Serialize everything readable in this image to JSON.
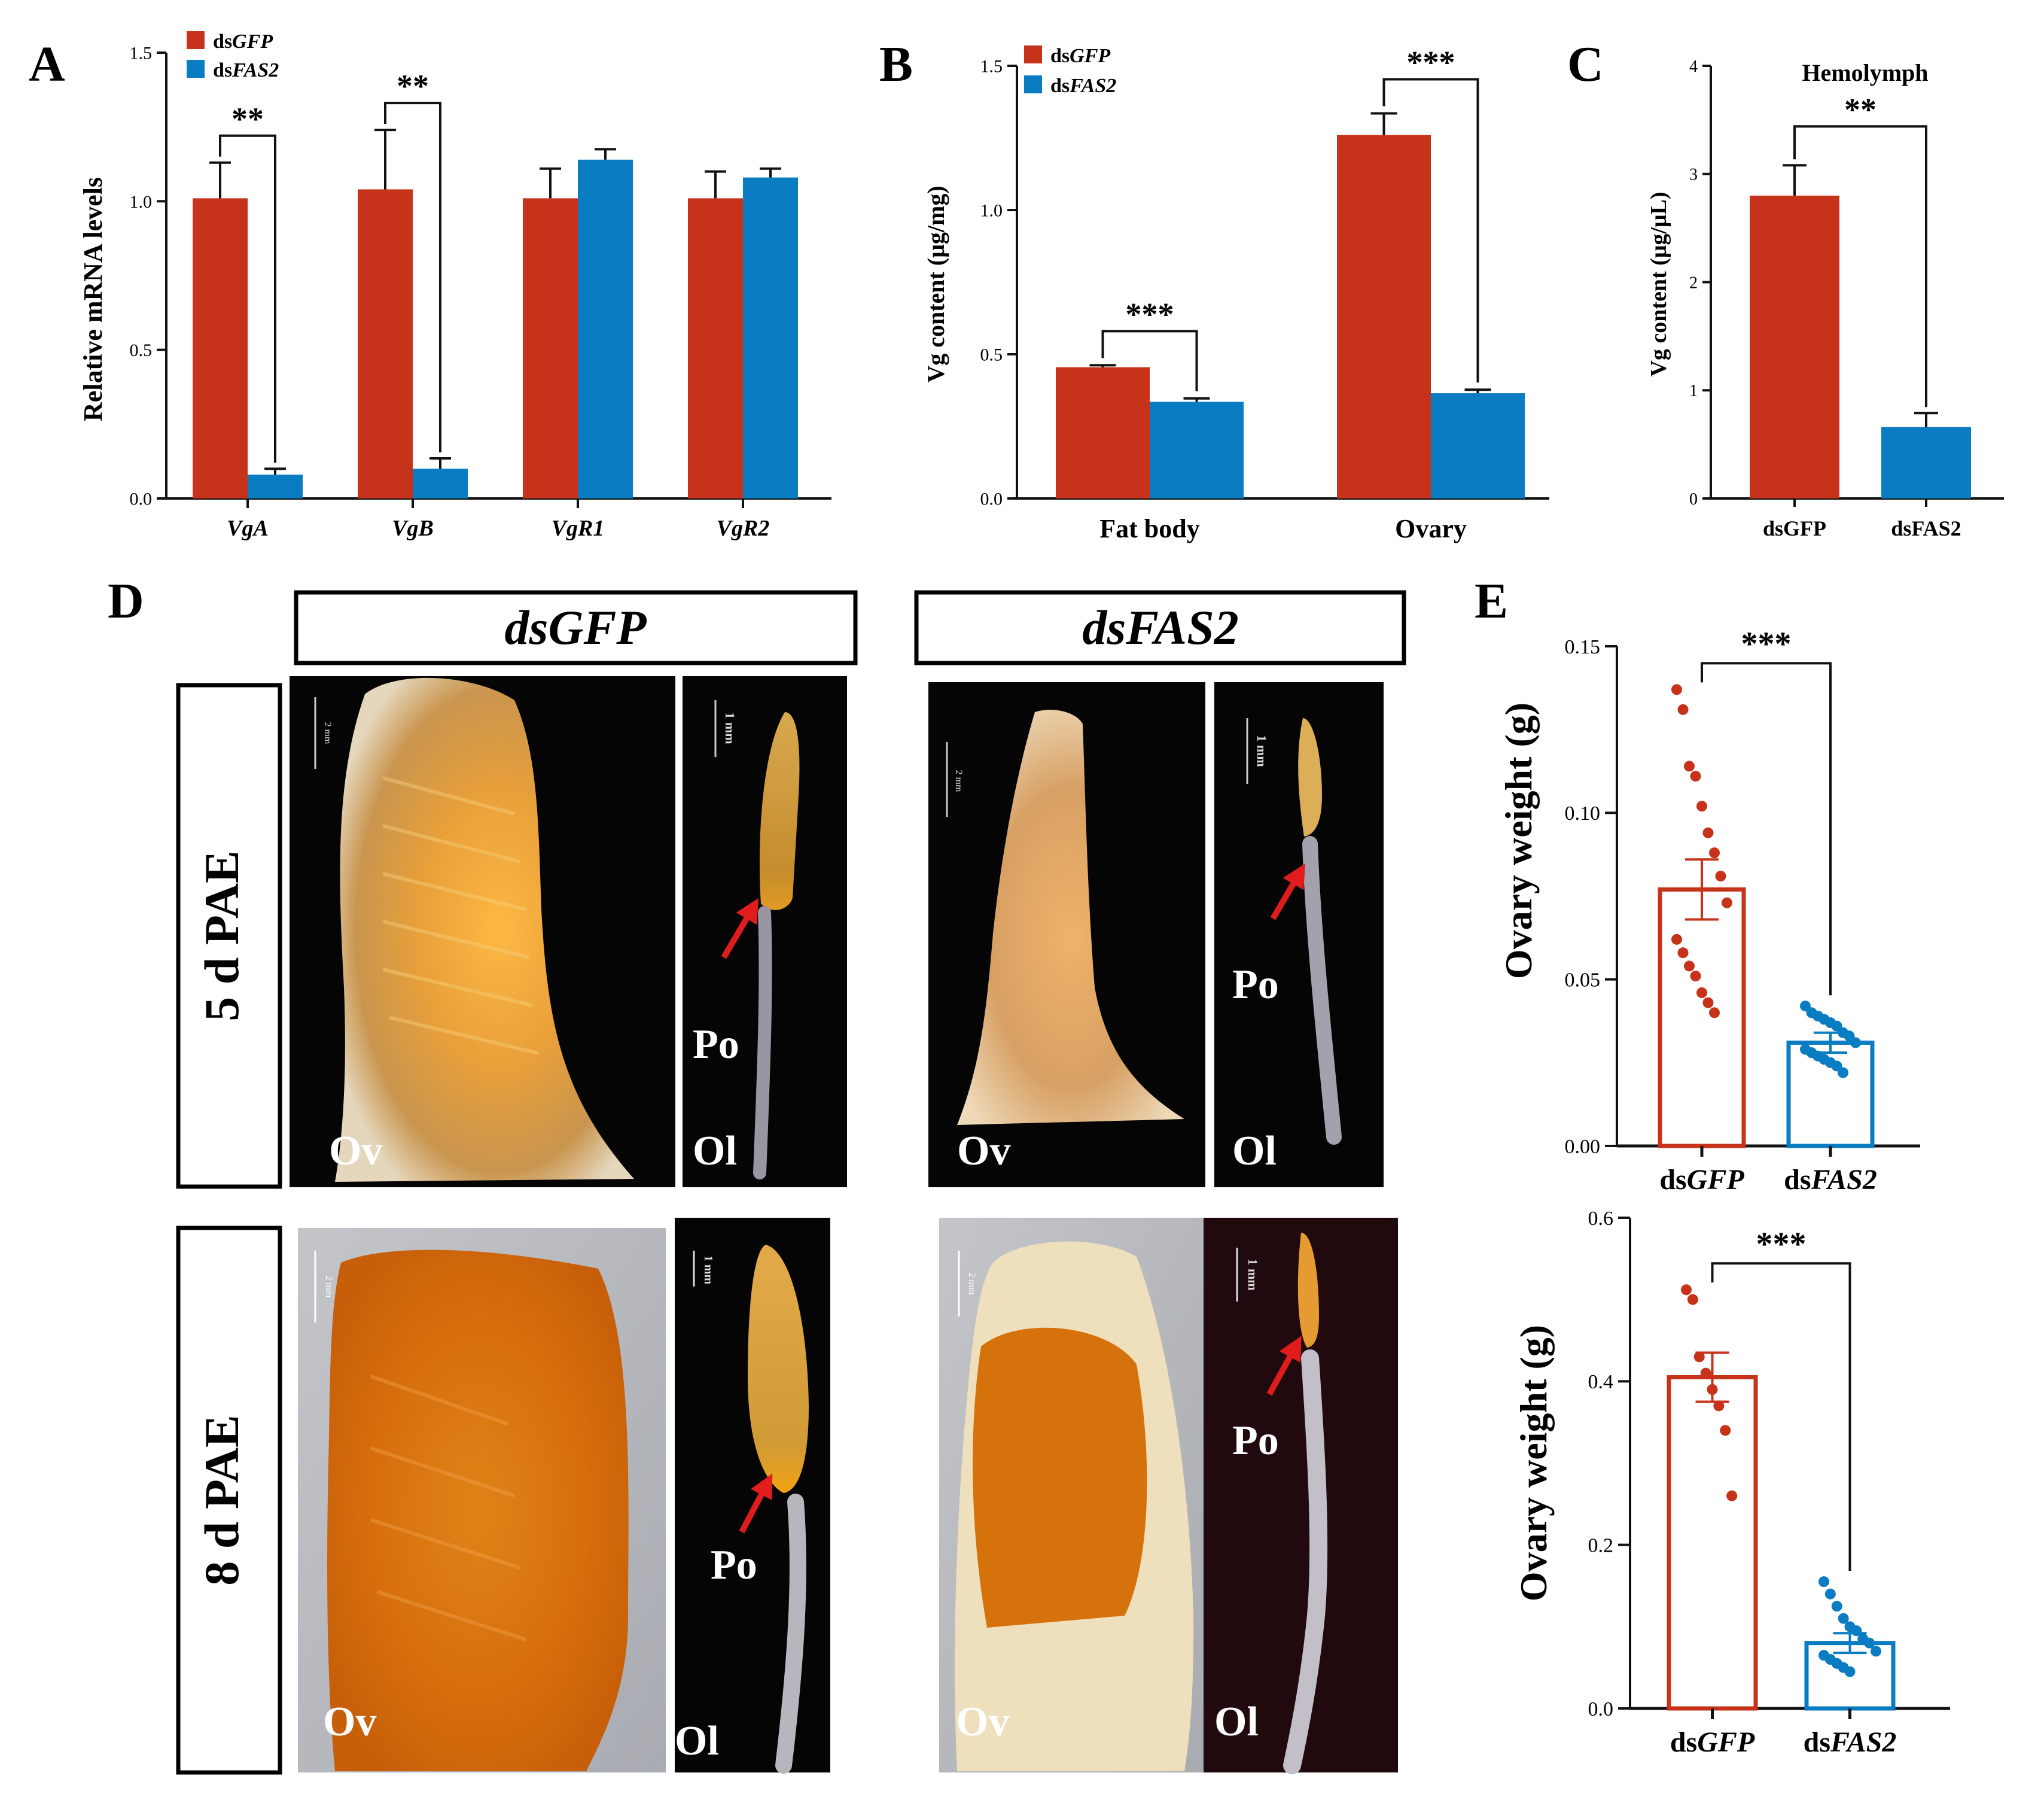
{
  "colors": {
    "gfp": "#c7321a",
    "fas2": "#0a7cc1",
    "axis": "#111111",
    "arrow": "#e11c1c"
  },
  "chart_data": [
    {
      "id": "A",
      "panel_label": "A",
      "type": "bar",
      "ylabel": "Relative mRNA levels",
      "ylim": [
        0,
        1.5
      ],
      "yticks": [
        "0.0",
        "0.5",
        "1.0",
        "1.5"
      ],
      "categories": [
        "VgA",
        "VgB",
        "VgR1",
        "VgR2"
      ],
      "series": [
        {
          "name": "dsGFP",
          "prefix": "ds",
          "italic": "GFP",
          "values": [
            1.01,
            1.04,
            1.01,
            1.01
          ],
          "errors": [
            0.12,
            0.2,
            0.1,
            0.09
          ]
        },
        {
          "name": "dsFAS2",
          "prefix": "ds",
          "italic": "FAS2",
          "values": [
            0.08,
            0.1,
            1.14,
            1.08
          ],
          "errors": [
            0.02,
            0.035,
            0.035,
            0.03
          ]
        }
      ],
      "significance": [
        {
          "category": 0,
          "label": "**"
        },
        {
          "category": 1,
          "label": "**"
        }
      ]
    },
    {
      "id": "B",
      "panel_label": "B",
      "type": "bar",
      "ylabel": "Vg content (μg/mg)",
      "ylim": [
        0,
        1.5
      ],
      "yticks": [
        "0.0",
        "0.5",
        "1.0",
        "1.5"
      ],
      "categories": [
        "Fat body",
        "Ovary"
      ],
      "series": [
        {
          "name": "dsGFP",
          "prefix": "ds",
          "italic": "GFP",
          "values": [
            0.455,
            1.26
          ],
          "errors": [
            0.007,
            0.075
          ]
        },
        {
          "name": "dsFAS2",
          "prefix": "ds",
          "italic": "FAS2",
          "values": [
            0.335,
            0.365
          ],
          "errors": [
            0.012,
            0.012
          ]
        }
      ],
      "significance": [
        {
          "category": 0,
          "label": "***"
        },
        {
          "category": 1,
          "label": "***"
        }
      ]
    },
    {
      "id": "C",
      "panel_label": "C",
      "type": "bar",
      "title": "Hemolymph",
      "ylabel": "Vg content (μg/μL)",
      "ylim": [
        0,
        4
      ],
      "yticks": [
        "0",
        "1",
        "2",
        "3",
        "4"
      ],
      "categories": [
        "dsGFP",
        "dsFAS2"
      ],
      "values": [
        2.8,
        0.66
      ],
      "errors": [
        0.28,
        0.13
      ],
      "significance": [
        {
          "label": "**"
        }
      ]
    },
    {
      "id": "E1",
      "panel_label": "E",
      "type": "bar",
      "ylabel": "Ovary weight (g)",
      "ylim": [
        0,
        0.15
      ],
      "yticks": [
        "0.00",
        "0.05",
        "0.10",
        "0.15"
      ],
      "categories": [
        "dsGFP",
        "dsFAS2"
      ],
      "values": [
        0.077,
        0.031
      ],
      "errors": [
        0.009,
        0.003
      ],
      "points": [
        [
          0.137,
          0.131,
          0.114,
          0.111,
          0.102,
          0.094,
          0.088,
          0.081,
          0.073,
          0.062,
          0.058,
          0.054,
          0.051,
          0.046,
          0.043,
          0.04
        ],
        [
          0.042,
          0.04,
          0.039,
          0.038,
          0.037,
          0.036,
          0.034,
          0.033,
          0.031,
          0.029,
          0.028,
          0.027,
          0.026,
          0.025,
          0.024,
          0.022
        ]
      ],
      "significance": [
        {
          "label": "***"
        }
      ]
    },
    {
      "id": "E2",
      "type": "bar",
      "ylabel": "Ovary weight (g)",
      "ylim": [
        0,
        0.6
      ],
      "yticks": [
        "0.0",
        "0.2",
        "0.4",
        "0.6"
      ],
      "categories": [
        "dsGFP",
        "dsFAS2"
      ],
      "values": [
        0.405,
        0.08
      ],
      "errors": [
        0.03,
        0.012
      ],
      "points": [
        [
          0.512,
          0.5,
          0.43,
          0.41,
          0.39,
          0.37,
          0.34,
          0.26
        ],
        [
          0.155,
          0.14,
          0.125,
          0.11,
          0.1,
          0.095,
          0.085,
          0.08,
          0.07,
          0.065,
          0.06,
          0.055,
          0.05,
          0.045
        ]
      ],
      "significance": [
        {
          "label": "***"
        }
      ]
    }
  ],
  "panel_d": {
    "label": "D",
    "col_headers": [
      "dsGFP",
      "dsFAS2"
    ],
    "row_headers": [
      "5 d PAE",
      "8 d PAE"
    ],
    "ov": "Ov",
    "ol": "Ol",
    "po": "Po",
    "scale_2mm": "2 mm",
    "scale_1mm": "1 mm"
  }
}
